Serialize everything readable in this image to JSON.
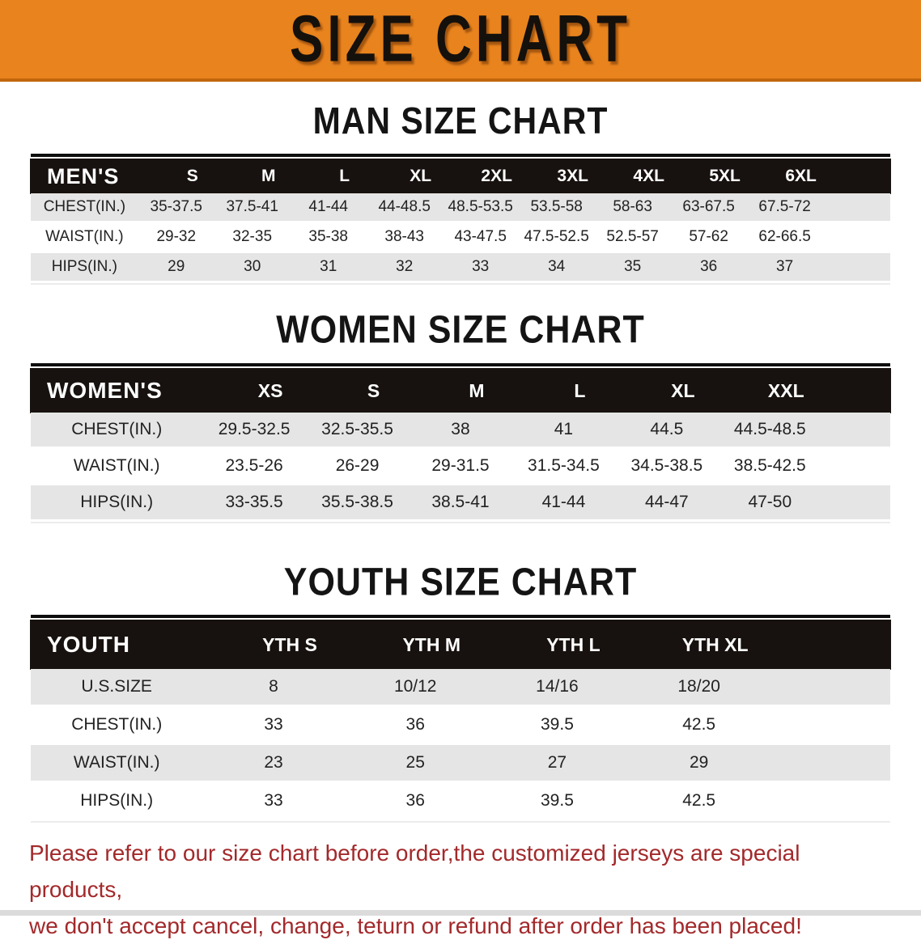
{
  "banner": {
    "title": "SIZE CHART",
    "bg_color": "#E8831D"
  },
  "colors": {
    "header_band_bg": "#17120F",
    "row_alt_bg": "#E5E5E5",
    "note_color": "#A3292B"
  },
  "sections": [
    {
      "title": "MAN SIZE CHART",
      "table": {
        "header_label": "MEN'S",
        "columns": [
          "S",
          "M",
          "L",
          "XL",
          "2XL",
          "3XL",
          "4XL",
          "5XL",
          "6XL"
        ],
        "rows": [
          {
            "label": "CHEST(IN.)",
            "values": [
              "35-37.5",
              "37.5-41",
              "41-44",
              "44-48.5",
              "48.5-53.5",
              "53.5-58",
              "58-63",
              "63-67.5",
              "67.5-72"
            ]
          },
          {
            "label": "WAIST(IN.)",
            "values": [
              "29-32",
              "32-35",
              "35-38",
              "38-43",
              "43-47.5",
              "47.5-52.5",
              "52.5-57",
              "57-62",
              "62-66.5"
            ]
          },
          {
            "label": "HIPS(IN.)",
            "values": [
              "29",
              "30",
              "31",
              "32",
              "33",
              "34",
              "35",
              "36",
              "37"
            ]
          }
        ]
      }
    },
    {
      "title": "WOMEN SIZE CHART",
      "table": {
        "header_label": "WOMEN'S",
        "columns": [
          "XS",
          "S",
          "M",
          "L",
          "XL",
          "XXL"
        ],
        "rows": [
          {
            "label": "CHEST(IN.)",
            "values": [
              "29.5-32.5",
              "32.5-35.5",
              "38",
              "41",
              "44.5",
              "44.5-48.5"
            ]
          },
          {
            "label": "WAIST(IN.)",
            "values": [
              "23.5-26",
              "26-29",
              "29-31.5",
              "31.5-34.5",
              "34.5-38.5",
              "38.5-42.5"
            ]
          },
          {
            "label": "HIPS(IN.)",
            "values": [
              "33-35.5",
              "35.5-38.5",
              "38.5-41",
              "41-44",
              "44-47",
              "47-50"
            ]
          }
        ]
      }
    },
    {
      "title": "YOUTH SIZE CHART",
      "table": {
        "header_label": "YOUTH",
        "columns": [
          "YTH S",
          "YTH M",
          "YTH L",
          "YTH XL"
        ],
        "rows": [
          {
            "label": "U.S.SIZE",
            "values": [
              "8",
              "10/12",
              "14/16",
              "18/20"
            ]
          },
          {
            "label": "CHEST(IN.)",
            "values": [
              "33",
              "36",
              "39.5",
              "42.5"
            ]
          },
          {
            "label": "WAIST(IN.)",
            "values": [
              "23",
              "25",
              "27",
              "29"
            ]
          },
          {
            "label": "HIPS(IN.)",
            "values": [
              "33",
              "36",
              "39.5",
              "42.5"
            ]
          }
        ]
      }
    }
  ],
  "footer_note": {
    "line1": "Please refer to our size chart before order,the customized jerseys are special products,",
    "line2": "we don't accept cancel, change, teturn or refund after order has been placed!"
  }
}
